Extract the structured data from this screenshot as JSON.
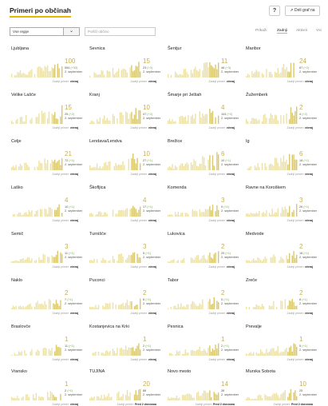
{
  "header": {
    "title": "Primeri po občinah",
    "help_label": "?",
    "embed_label": "Deli graf na"
  },
  "toolbar": {
    "region_select": "Vse regije",
    "search_placeholder": "Poišči občino",
    "sort_options": [
      {
        "label": "Prikaži",
        "active": false
      },
      {
        "label": "Zadnji",
        "active": true
      },
      {
        "label": "Aktivni",
        "active": false
      },
      {
        "label": "Vsi",
        "active": false
      }
    ]
  },
  "colors": {
    "bar": "#d9c86f",
    "bar_light": "#ece2a8",
    "accent": "#e8b800",
    "number": "#c8b048",
    "delta": "#7aa35b"
  },
  "footer_prefix": "Zadnji primer:",
  "cards": [
    {
      "name": "Ljubljana",
      "big": "100",
      "sub1": "554",
      "delta": "(+53)",
      "sub2": "2. september",
      "last": "včeraj"
    },
    {
      "name": "Sevnica",
      "big": "15",
      "sub1": "23",
      "delta": "(+2)",
      "sub2": "2. september",
      "last": "včeraj"
    },
    {
      "name": "Šentjur",
      "big": "11",
      "sub1": "46",
      "delta": "(+3)",
      "sub2": "2. september",
      "last": "včeraj"
    },
    {
      "name": "Maribor",
      "big": "24",
      "sub1": "87",
      "delta": "(+2)",
      "sub2": "2. september",
      "last": "včeraj"
    },
    {
      "name": "Velike Lašče",
      "big": "15",
      "sub1": "25",
      "delta": "(+2)",
      "sub2": "2. september",
      "last": "včeraj"
    },
    {
      "name": "Kranj",
      "big": "10",
      "sub1": "47",
      "delta": "(+2)",
      "sub2": "2. september",
      "last": "včeraj"
    },
    {
      "name": "Šmarje pri Jelšah",
      "big": "4",
      "sub1": "104",
      "delta": "(+2)",
      "sub2": "2. september",
      "last": "včeraj"
    },
    {
      "name": "Žužemberk",
      "big": "2",
      "sub1": "4",
      "delta": "(+2)",
      "sub2": "2. september",
      "last": "včeraj"
    },
    {
      "name": "Celje",
      "big": "21",
      "sub1": "72",
      "delta": "(+1)",
      "sub2": "2. september",
      "last": "včeraj"
    },
    {
      "name": "Lendava/Lendva",
      "big": "10",
      "sub1": "27",
      "delta": "(+1)",
      "sub2": "2. september",
      "last": "včeraj"
    },
    {
      "name": "Brežice",
      "big": "6",
      "sub1": "10",
      "delta": "(+1)",
      "sub2": "2. september",
      "last": "včeraj"
    },
    {
      "name": "Ig",
      "big": "6",
      "sub1": "18",
      "delta": "(+1)",
      "sub2": "2. september",
      "last": "včeraj"
    },
    {
      "name": "Laško",
      "big": "4",
      "sub1": "10",
      "delta": "(+1)",
      "sub2": "2. september",
      "last": "včeraj"
    },
    {
      "name": "Škofljica",
      "big": "4",
      "sub1": "17",
      "delta": "(+1)",
      "sub2": "2. september",
      "last": "včeraj"
    },
    {
      "name": "Komenda",
      "big": "3",
      "sub1": "9",
      "delta": "(+1)",
      "sub2": "2. september",
      "last": "včeraj"
    },
    {
      "name": "Ravne na Koroškem",
      "big": "3",
      "sub1": "26",
      "delta": "(+1)",
      "sub2": "2. september",
      "last": "včeraj"
    },
    {
      "name": "Semič",
      "big": "3",
      "sub1": "11",
      "delta": "(+1)",
      "sub2": "2. september",
      "last": "včeraj"
    },
    {
      "name": "Turnišče",
      "big": "3",
      "sub1": "5",
      "delta": "(+1)",
      "sub2": "2. september",
      "last": "včeraj"
    },
    {
      "name": "Lukovica",
      "big": "2",
      "sub1": "20",
      "delta": "(+1)",
      "sub2": "2. september",
      "last": "včeraj"
    },
    {
      "name": "Medvode",
      "big": "2",
      "sub1": "16",
      "delta": "(+1)",
      "sub2": "2. september",
      "last": "včeraj"
    },
    {
      "name": "Naklo",
      "big": "2",
      "sub1": "7",
      "delta": "(+1)",
      "sub2": "2. september",
      "last": "včeraj"
    },
    {
      "name": "Puconci",
      "big": "2",
      "sub1": "8",
      "delta": "(+1)",
      "sub2": "2. september",
      "last": "včeraj"
    },
    {
      "name": "Tabor",
      "big": "2",
      "sub1": "5",
      "delta": "(+1)",
      "sub2": "2. september",
      "last": "včeraj"
    },
    {
      "name": "Zreče",
      "big": "2",
      "sub1": "8",
      "delta": "(+1)",
      "sub2": "2. september",
      "last": "včeraj"
    },
    {
      "name": "Braslovče",
      "big": "1",
      "sub1": "11",
      "delta": "(+1)",
      "sub2": "2. september",
      "last": "včeraj"
    },
    {
      "name": "Kostanjevica na Krki",
      "big": "1",
      "sub1": "2",
      "delta": "(+1)",
      "sub2": "2. september",
      "last": "včeraj"
    },
    {
      "name": "Pesnica",
      "big": "1",
      "sub1": "2",
      "delta": "(+1)",
      "sub2": "2. september",
      "last": "včeraj"
    },
    {
      "name": "Prevalje",
      "big": "1",
      "sub1": "5",
      "delta": "(+1)",
      "sub2": "2. september",
      "last": "včeraj"
    },
    {
      "name": "Vransko",
      "big": "1",
      "sub1": "2",
      "delta": "(+1)",
      "sub2": "2. september",
      "last": "včeraj"
    },
    {
      "name": "TUJINA",
      "big": "20",
      "sub1": "88",
      "delta": "",
      "sub2": "2. september",
      "last": "Pred 2 dnevoma"
    },
    {
      "name": "Novo mesto",
      "big": "14",
      "sub1": "38",
      "delta": "",
      "sub2": "2. september",
      "last": "Pred 2 dnevoma"
    },
    {
      "name": "Murska Sobota",
      "big": "10",
      "sub1": "25",
      "delta": "",
      "sub2": "2. september",
      "last": "Pred 2 dnevoma"
    }
  ]
}
